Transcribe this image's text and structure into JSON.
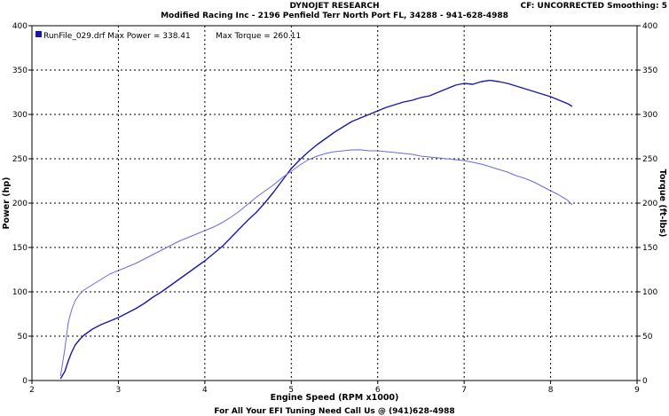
{
  "header": {
    "title": "DYNOJET RESEARCH",
    "subtitle": "Modified Racing Inc - 2196 Penfield Terr North Port FL, 34288 - 941-628-4988",
    "cf_label": "CF: UNCORRECTED  Smoothing: 5"
  },
  "footer": {
    "text": "For All Your EFI Tuning Need Call Us @ (941)628-4988"
  },
  "legend": {
    "run_label": "RunFile_029.drf Max Power = 338.41",
    "torque_label": "Max Torque = 260.11",
    "color": "#1a1aa8"
  },
  "colors": {
    "power": "#1a1aa8",
    "torque": "#6a6ae0",
    "grid": "#000000"
  },
  "chart_data": {
    "type": "line",
    "title": "DYNOJET RESEARCH",
    "xlabel": "Engine Speed (RPM x1000)",
    "ylabel": "Power (hp)",
    "y2label": "Torque (ft-lbs)",
    "xlim": [
      2,
      9
    ],
    "ylim": [
      0,
      400
    ],
    "y2lim": [
      0,
      400
    ],
    "xticks": [
      2,
      3,
      4,
      5,
      6,
      7,
      8,
      9
    ],
    "yticks": [
      0,
      50,
      100,
      150,
      200,
      250,
      300,
      350,
      400
    ],
    "grid": true,
    "legend_position": "top-left",
    "series": [
      {
        "name": "Power",
        "axis": "left",
        "color": "#1a1aa8",
        "x": [
          2.33,
          2.38,
          2.42,
          2.46,
          2.5,
          2.55,
          2.6,
          2.7,
          2.8,
          2.9,
          3.0,
          3.1,
          3.2,
          3.3,
          3.4,
          3.5,
          3.6,
          3.7,
          3.8,
          3.9,
          4.0,
          4.1,
          4.2,
          4.3,
          4.4,
          4.5,
          4.6,
          4.7,
          4.8,
          4.9,
          5.0,
          5.1,
          5.2,
          5.3,
          5.4,
          5.5,
          5.6,
          5.7,
          5.8,
          5.9,
          6.0,
          6.1,
          6.2,
          6.3,
          6.4,
          6.5,
          6.6,
          6.7,
          6.8,
          6.9,
          7.0,
          7.1,
          7.2,
          7.3,
          7.4,
          7.5,
          7.6,
          7.7,
          7.8,
          7.9,
          8.0,
          8.1,
          8.2,
          8.25
        ],
        "values": [
          2,
          10,
          22,
          32,
          40,
          46,
          51,
          58,
          63,
          67,
          71,
          76,
          81,
          87,
          94,
          100,
          107,
          114,
          121,
          128,
          135,
          143,
          151,
          161,
          171,
          181,
          190,
          201,
          213,
          226,
          239,
          249,
          258,
          266,
          273,
          280,
          286,
          292,
          296,
          300,
          304,
          308,
          311,
          314,
          316,
          319,
          321,
          325,
          329,
          333,
          335,
          334,
          337,
          338.41,
          337,
          335,
          332,
          329,
          326,
          323,
          320,
          316,
          312,
          309
        ]
      },
      {
        "name": "Torque",
        "axis": "right",
        "color": "#6a6ae0",
        "x": [
          2.33,
          2.38,
          2.42,
          2.46,
          2.5,
          2.55,
          2.6,
          2.7,
          2.8,
          2.9,
          3.0,
          3.1,
          3.2,
          3.3,
          3.4,
          3.5,
          3.6,
          3.7,
          3.8,
          3.9,
          4.0,
          4.1,
          4.2,
          4.3,
          4.4,
          4.5,
          4.6,
          4.7,
          4.8,
          4.9,
          5.0,
          5.1,
          5.2,
          5.3,
          5.4,
          5.5,
          5.6,
          5.7,
          5.8,
          5.9,
          6.0,
          6.1,
          6.2,
          6.3,
          6.4,
          6.5,
          6.6,
          6.7,
          6.8,
          6.9,
          7.0,
          7.1,
          7.2,
          7.3,
          7.4,
          7.5,
          7.6,
          7.7,
          7.8,
          7.9,
          8.0,
          8.1,
          8.2,
          8.25
        ],
        "values": [
          5,
          35,
          65,
          80,
          90,
          97,
          102,
          108,
          114,
          120,
          124,
          128,
          132,
          137,
          142,
          147,
          152,
          157,
          161,
          165,
          169,
          173,
          178,
          184,
          191,
          199,
          207,
          214,
          221,
          229,
          236,
          243,
          249,
          253,
          256,
          258,
          259,
          260,
          260.11,
          259,
          259,
          258,
          257,
          256,
          255,
          253,
          252,
          251,
          250,
          249,
          248,
          246,
          244,
          241,
          238,
          235,
          231,
          228,
          224,
          219,
          214,
          209,
          203,
          198
        ]
      }
    ]
  }
}
